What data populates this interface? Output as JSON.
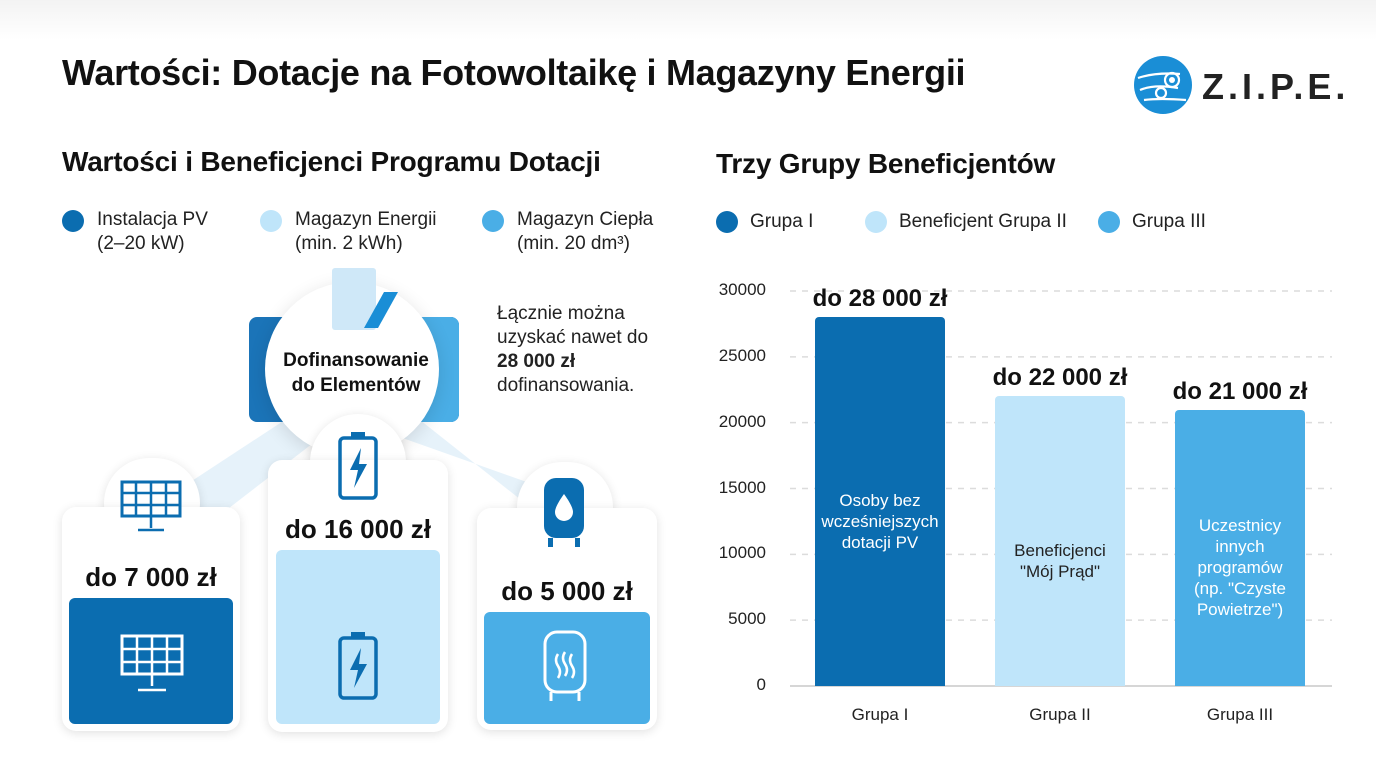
{
  "title": "Wartości: Dotacje na Fotowoltaikę i Magazyny Energii",
  "logo": {
    "text": "Z.I.P.E."
  },
  "left_section": {
    "title": "Wartości i Beneficjenci Programu Dotacji",
    "legend": [
      {
        "line1": "Instalacja PV",
        "line2": "(2–20 kW)",
        "color": "#0b6db0"
      },
      {
        "line1": "Magazyn Energii",
        "line2": "(min. 2 kWh)",
        "color": "#bfe5fa"
      },
      {
        "line1": "Magazyn Ciepła",
        "line2": "(min. 20 dm³)",
        "color": "#4aaee6"
      }
    ],
    "hub": {
      "line1": "Dofinansowanie",
      "line2": "do Elementów"
    },
    "note": {
      "prefix": "Łącznie można uzyskać nawet do ",
      "amount": "28 000 zł",
      "suffix": " dofinansowania."
    },
    "cards": [
      {
        "amount": "do 7 000 zł",
        "icon": "solar-panel-icon",
        "color": "#0b6db0"
      },
      {
        "amount": "do 16 000 zł",
        "icon": "battery-icon",
        "color": "#bfe5fa"
      },
      {
        "amount": "do 5 000 zł",
        "icon": "water-tank-icon",
        "color": "#4aaee6"
      }
    ]
  },
  "right_section": {
    "title": "Trzy Grupy Beneficjentów",
    "legend": [
      {
        "label": "Grupa I",
        "color": "#0b6db0"
      },
      {
        "label": "Beneficjent Grupa II",
        "color": "#bfe5fa"
      },
      {
        "label": "Grupa III",
        "color": "#4aaee6"
      }
    ]
  },
  "chart_data": {
    "type": "bar",
    "categories": [
      "Grupa I",
      "Grupa II",
      "Grupa III"
    ],
    "values": [
      28000,
      22000,
      21000
    ],
    "value_labels": [
      "do 28 000 zł",
      "do 22 000 zł",
      "do 21 000 zł"
    ],
    "bar_texts": [
      "Osoby bez\nwcześniejszych\ndotacji PV",
      "Beneficjenci\n\"Mój Prąd\"",
      "Uczestnicy\ninnych\nprogramów\n(np. \"Czyste\nPowietrze\")"
    ],
    "bar_colors": [
      "#0b6db0",
      "#bfe5fa",
      "#4aaee6"
    ],
    "bar_text_colors": [
      "#ffffff",
      "#222222",
      "#ffffff"
    ],
    "yticks": [
      0,
      5000,
      10000,
      15000,
      20000,
      25000,
      30000
    ],
    "ylim": [
      0,
      30000
    ],
    "grid": true,
    "legend_position": "top"
  }
}
